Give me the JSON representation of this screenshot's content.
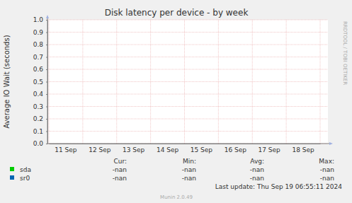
{
  "chart_data": {
    "type": "line",
    "title": "Disk latency per device - by week",
    "y_label": "Average IO Wait (seconds)",
    "categories": [
      "11 Sep",
      "12 Sep",
      "13 Sep",
      "14 Sep",
      "15 Sep",
      "16 Sep",
      "17 Sep",
      "18 Sep"
    ],
    "ylim": [
      0,
      1
    ],
    "yticks": [
      {
        "value": 0,
        "label": "0.0"
      },
      0.1,
      0.2,
      0.3,
      0.4,
      0.5,
      0.6,
      0.7,
      0.8,
      0.9,
      {
        "value": 1,
        "label": "1.0"
      }
    ],
    "grid": true,
    "series": [
      {
        "name": "sda",
        "color": "#00cc00",
        "values": [
          null,
          null,
          null,
          null,
          null,
          null,
          null,
          null
        ],
        "stats": [
          "-nan",
          "-nan",
          "-nan",
          "-nan"
        ]
      },
      {
        "name": "sr0",
        "color": "#0066b3",
        "values": [
          null,
          null,
          null,
          null,
          null,
          null,
          null,
          null
        ],
        "stats": [
          "-nan",
          "-nan",
          "-nan",
          "-nan"
        ]
      }
    ],
    "legend_columns": [
      "Cur:",
      "Min:",
      "Avg:",
      "Max:"
    ],
    "last_update": "Last update: Thu Sep 19 06:55:11 2024",
    "footer": "Munin 2.0.49",
    "watermark": "RRDTOOL / TOBI OETIKER"
  }
}
